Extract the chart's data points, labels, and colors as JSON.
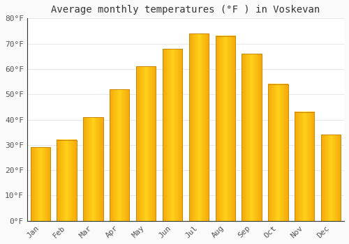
{
  "title": "Average monthly temperatures (°F ) in Voskevan",
  "months": [
    "Jan",
    "Feb",
    "Mar",
    "Apr",
    "May",
    "Jun",
    "Jul",
    "Aug",
    "Sep",
    "Oct",
    "Nov",
    "Dec"
  ],
  "values": [
    29,
    32,
    41,
    52,
    61,
    68,
    74,
    73,
    66,
    54,
    43,
    34
  ],
  "bar_color_center": "#FFD040",
  "bar_color_edge": "#F5A800",
  "bar_outline_color": "#C8870A",
  "background_color": "#FAFAFA",
  "plot_bg_color": "#FFFFFF",
  "grid_color": "#E8E8E8",
  "ylim": [
    0,
    80
  ],
  "yticks": [
    0,
    10,
    20,
    30,
    40,
    50,
    60,
    70,
    80
  ],
  "ytick_labels": [
    "0°F",
    "10°F",
    "20°F",
    "30°F",
    "40°F",
    "50°F",
    "60°F",
    "70°F",
    "80°F"
  ],
  "title_fontsize": 10,
  "tick_fontsize": 8,
  "axis_label_color": "#555555",
  "spine_color": "#333333",
  "bar_width": 0.75
}
